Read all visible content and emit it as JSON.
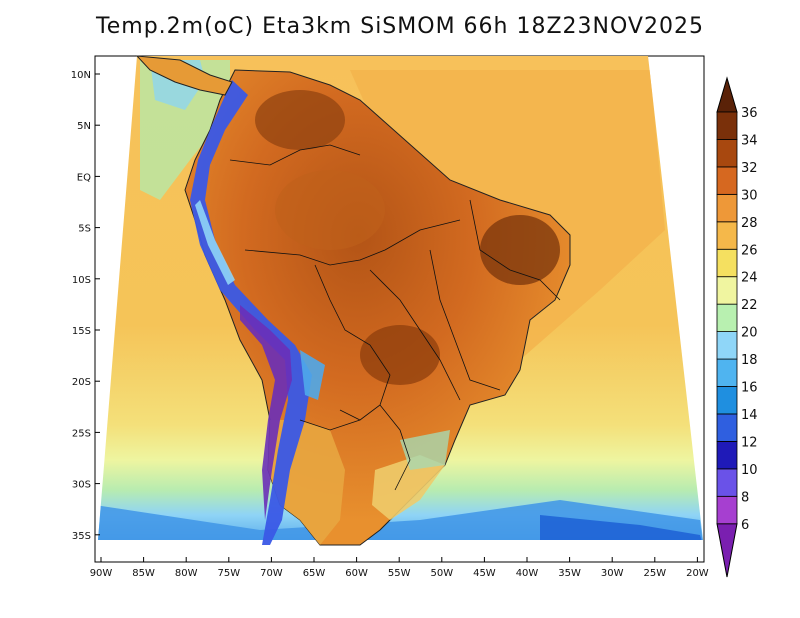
{
  "title": "Temp.2m(oC) Eta3km SiSMOM 66h 18Z23NOV2025",
  "map": {
    "variable": "2 m air temperature",
    "unit": "oC",
    "model": "Eta3km SiSMOM",
    "forecast_hour": "66h",
    "valid_time": "18Z23NOV2025",
    "lat_labels": [
      "10N",
      "5N",
      "EQ",
      "5S",
      "10S",
      "15S",
      "20S",
      "25S",
      "30S",
      "35S"
    ],
    "lon_labels": [
      "90W",
      "85W",
      "80W",
      "75W",
      "70W",
      "65W",
      "60W",
      "55W",
      "50W",
      "45W",
      "40W",
      "35W",
      "30W",
      "25W",
      "20W"
    ]
  },
  "colorbar": {
    "labels": [
      "6",
      "8",
      "10",
      "12",
      "14",
      "16",
      "18",
      "20",
      "22",
      "24",
      "26",
      "28",
      "30",
      "32",
      "34",
      "36"
    ],
    "colors": [
      "#7a1fb0",
      "#a63fd0",
      "#6a52e8",
      "#1f1ab8",
      "#2f5fe0",
      "#1f8fe0",
      "#4fb4f0",
      "#8fd6f8",
      "#b8f0b0",
      "#f0f5a0",
      "#f5e060",
      "#f5b84a",
      "#ee9838",
      "#d66820",
      "#a8480f",
      "#7a300a",
      "#5a2208"
    ]
  }
}
